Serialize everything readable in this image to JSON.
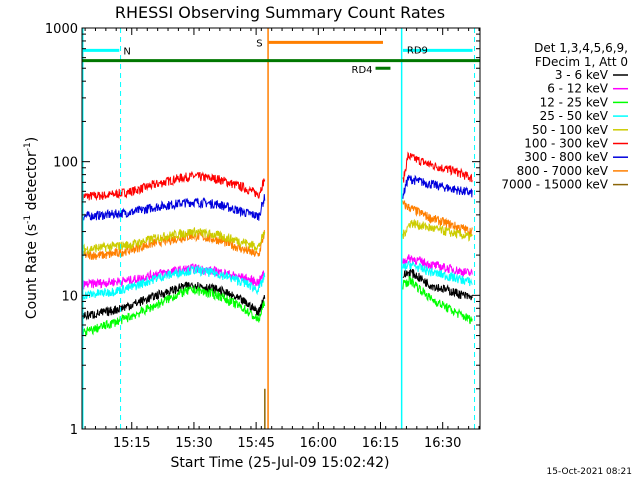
{
  "chart_data": {
    "type": "line",
    "title": "RHESSI Observing Summary Count Rates",
    "xlabel": "Start Time (25-Jul-09 15:02:42)",
    "ylabel_main": "Count Rate (s",
    "ylabel_sup1": "-1",
    "ylabel_mid": " detector",
    "ylabel_sup2": "-1",
    "ylabel_end": ")",
    "yscale": "log",
    "ylim": [
      1,
      1000
    ],
    "xlim_minutes": [
      15.05,
      16.65
    ],
    "x_ticks": [
      {
        "t": 15.25,
        "label": "15:15"
      },
      {
        "t": 15.5,
        "label": "15:30"
      },
      {
        "t": 15.75,
        "label": "15:45"
      },
      {
        "t": 16.0,
        "label": "16:00"
      },
      {
        "t": 16.25,
        "label": "16:15"
      },
      {
        "t": 16.5,
        "label": "16:30"
      }
    ],
    "y_ticks": [
      {
        "v": 1,
        "label": "1"
      },
      {
        "v": 10,
        "label": "10"
      },
      {
        "v": 100,
        "label": "100"
      },
      {
        "v": 1000,
        "label": "1000"
      }
    ],
    "legend": {
      "header1": "Det 1,3,4,5,6,9,",
      "header2": "FDecim 1, Att 0",
      "entries": [
        {
          "label": "3 - 6 keV",
          "color": "#000000"
        },
        {
          "label": "6 - 12 keV",
          "color": "#ff00ff"
        },
        {
          "label": "12 - 25 keV",
          "color": "#00ff00"
        },
        {
          "label": "25 - 50 keV",
          "color": "#00ffff"
        },
        {
          "label": "50 - 100 keV",
          "color": "#cccc00"
        },
        {
          "label": "100 - 300 keV",
          "color": "#ff0000"
        },
        {
          "label": "300 - 800 keV",
          "color": "#0000dd"
        },
        {
          "label": "800 - 7000 keV",
          "color": "#ff7f00"
        },
        {
          "label": "7000 - 15000 keV",
          "color": "#8b6508"
        }
      ]
    },
    "gaps": [
      {
        "start": 15.791,
        "end": 16.337
      }
    ],
    "series": [
      {
        "name": "100 - 300 keV",
        "color": "#ff0000",
        "seg1": [
          [
            15.05,
            55
          ],
          [
            15.15,
            56
          ],
          [
            15.25,
            60
          ],
          [
            15.35,
            68
          ],
          [
            15.45,
            76
          ],
          [
            15.5,
            78
          ],
          [
            15.6,
            74
          ],
          [
            15.7,
            64
          ],
          [
            15.76,
            57
          ],
          [
            15.785,
            75
          ]
        ],
        "seg2": [
          [
            16.34,
            70
          ],
          [
            16.36,
            110
          ],
          [
            16.45,
            95
          ],
          [
            16.55,
            85
          ],
          [
            16.62,
            75
          ]
        ]
      },
      {
        "name": "300 - 800 keV",
        "color": "#0000dd",
        "seg1": [
          [
            15.05,
            39
          ],
          [
            15.15,
            40
          ],
          [
            15.25,
            42
          ],
          [
            15.35,
            46
          ],
          [
            15.45,
            49
          ],
          [
            15.5,
            50
          ],
          [
            15.6,
            48
          ],
          [
            15.7,
            42
          ],
          [
            15.76,
            39
          ],
          [
            15.785,
            55
          ]
        ],
        "seg2": [
          [
            16.34,
            55
          ],
          [
            16.36,
            75
          ],
          [
            16.45,
            68
          ],
          [
            16.55,
            62
          ],
          [
            16.62,
            58
          ]
        ]
      },
      {
        "name": "800 - 7000 keV",
        "color": "#ff7f00",
        "seg1": [
          [
            15.05,
            20
          ],
          [
            15.15,
            20
          ],
          [
            15.25,
            22
          ],
          [
            15.35,
            25
          ],
          [
            15.45,
            27
          ],
          [
            15.5,
            28
          ],
          [
            15.6,
            26
          ],
          [
            15.7,
            22
          ],
          [
            15.76,
            20
          ],
          [
            15.785,
            30
          ]
        ],
        "seg2": [
          [
            16.34,
            48
          ],
          [
            16.37,
            45
          ],
          [
            16.45,
            38
          ],
          [
            16.55,
            33
          ],
          [
            16.62,
            30
          ]
        ]
      },
      {
        "name": "50 - 100 keV",
        "color": "#cccc00",
        "seg1": [
          [
            15.05,
            22
          ],
          [
            15.15,
            23
          ],
          [
            15.25,
            24
          ],
          [
            15.35,
            27
          ],
          [
            15.45,
            29
          ],
          [
            15.5,
            30
          ],
          [
            15.6,
            28
          ],
          [
            15.7,
            25
          ],
          [
            15.76,
            23
          ],
          [
            15.785,
            30
          ]
        ],
        "seg2": [
          [
            16.34,
            28
          ],
          [
            16.37,
            35
          ],
          [
            16.45,
            32
          ],
          [
            16.55,
            29
          ],
          [
            16.62,
            27
          ]
        ]
      },
      {
        "name": "6 - 12 keV",
        "color": "#ff00ff",
        "seg1": [
          [
            15.05,
            12
          ],
          [
            15.15,
            12.5
          ],
          [
            15.25,
            13
          ],
          [
            15.35,
            14.5
          ],
          [
            15.45,
            15.5
          ],
          [
            15.5,
            16
          ],
          [
            15.6,
            15
          ],
          [
            15.7,
            13.5
          ],
          [
            15.76,
            12.5
          ],
          [
            15.785,
            15
          ]
        ],
        "seg2": [
          [
            16.34,
            18
          ],
          [
            16.37,
            19
          ],
          [
            16.45,
            17
          ],
          [
            16.55,
            15.5
          ],
          [
            16.62,
            14.5
          ]
        ]
      },
      {
        "name": "25 - 50 keV",
        "color": "#00ffff",
        "seg1": [
          [
            15.05,
            10
          ],
          [
            15.15,
            10.5
          ],
          [
            15.25,
            11.5
          ],
          [
            15.35,
            13.5
          ],
          [
            15.45,
            15
          ],
          [
            15.5,
            15.5
          ],
          [
            15.6,
            14.5
          ],
          [
            15.7,
            12.5
          ],
          [
            15.76,
            11
          ],
          [
            15.785,
            14
          ]
        ],
        "seg2": [
          [
            16.34,
            16
          ],
          [
            16.37,
            17
          ],
          [
            16.45,
            15
          ],
          [
            16.55,
            13.5
          ],
          [
            16.62,
            12.5
          ]
        ]
      },
      {
        "name": "3 - 6 keV",
        "color": "#000000",
        "seg1": [
          [
            15.05,
            7
          ],
          [
            15.15,
            7.5
          ],
          [
            15.25,
            8.5
          ],
          [
            15.35,
            10
          ],
          [
            15.45,
            11.5
          ],
          [
            15.5,
            12
          ],
          [
            15.6,
            11
          ],
          [
            15.7,
            9
          ],
          [
            15.76,
            7.5
          ],
          [
            15.785,
            10
          ]
        ],
        "seg2": [
          [
            16.34,
            14
          ],
          [
            16.37,
            15
          ],
          [
            16.45,
            12
          ],
          [
            16.55,
            10.5
          ],
          [
            16.62,
            9.5
          ]
        ]
      },
      {
        "name": "12 - 25 keV",
        "color": "#00ff00",
        "seg1": [
          [
            15.05,
            5.2
          ],
          [
            15.15,
            6
          ],
          [
            15.25,
            7
          ],
          [
            15.35,
            8.5
          ],
          [
            15.45,
            10.5
          ],
          [
            15.5,
            11
          ],
          [
            15.6,
            10
          ],
          [
            15.7,
            8
          ],
          [
            15.76,
            6.5
          ],
          [
            15.785,
            9
          ]
        ],
        "seg2": [
          [
            16.34,
            12
          ],
          [
            16.37,
            13
          ],
          [
            16.45,
            9.5
          ],
          [
            16.55,
            7.5
          ],
          [
            16.62,
            6.5
          ]
        ]
      }
    ],
    "attenuator_bars": [
      {
        "label": "N",
        "t0": 15.05,
        "t1": 15.2,
        "v": 680,
        "color": "#00ffff"
      },
      {
        "label": "S",
        "t0": 15.8,
        "t1": 16.26,
        "v": 780,
        "color": "#ff7f00"
      },
      {
        "label": "",
        "t0": 15.05,
        "t1": 16.65,
        "v": 570,
        "color": "#007700"
      },
      {
        "label": "RD4",
        "t0": 16.23,
        "t1": 16.29,
        "v": 500,
        "color": "#007700"
      },
      {
        "label": "RD9",
        "t0": 16.34,
        "t1": 16.62,
        "v": 680,
        "color": "#00ffff"
      }
    ],
    "vlines": [
      {
        "t": 15.053,
        "color": "#00ffff",
        "style": "solid"
      },
      {
        "t": 15.205,
        "color": "#00ffff",
        "style": "dash"
      },
      {
        "t": 15.798,
        "color": "#ff7f00",
        "style": "solid"
      },
      {
        "t": 16.335,
        "color": "#00ffff",
        "style": "solid"
      },
      {
        "t": 16.628,
        "color": "#00ffff",
        "style": "dash"
      }
    ],
    "spike_7000": {
      "t": 15.785,
      "v": 2,
      "color": "#8b6508"
    }
  },
  "timestamp": "15-Oct-2021 08:21"
}
